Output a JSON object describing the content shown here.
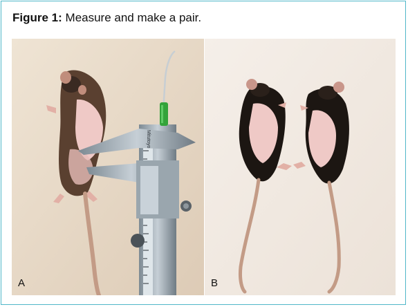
{
  "figure": {
    "label": "Figure 1:",
    "caption": "Measure and make a pair."
  },
  "panels": [
    {
      "label": "A"
    },
    {
      "label": "B"
    }
  ],
  "caliper": {
    "brand": "Mitutoyo"
  },
  "colors": {
    "frame_border": "#4fb7c9",
    "background_a": "#e9ddcc",
    "background_b": "#f3ece6",
    "fur_dark": "#1c1612",
    "fur_brown": "#5a4030",
    "skin_pink": "#efc9c6",
    "tail": "#c39b86",
    "needle_cap": "#33a33a"
  }
}
